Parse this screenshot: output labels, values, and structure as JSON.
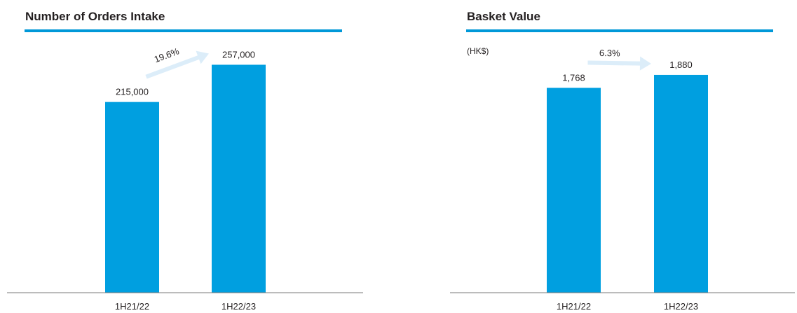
{
  "chart_data": [
    {
      "type": "bar",
      "title": "Number of Orders Intake",
      "unit": "",
      "categories": [
        "1H21/22",
        "1H22/23"
      ],
      "values": [
        215000,
        257000
      ],
      "value_labels": [
        "215,000",
        "257,000"
      ],
      "growth_label": "19.6%",
      "ylim": [
        0,
        300000
      ],
      "grid": false,
      "bar_color": "#009fe0",
      "accent_color": "#0098d8",
      "arrow_color": "#dcedf9"
    },
    {
      "type": "bar",
      "title": "Basket Value",
      "unit": "(HK$)",
      "categories": [
        "1H21/22",
        "1H22/23"
      ],
      "values": [
        1768,
        1880
      ],
      "value_labels": [
        "1,768",
        "1,880"
      ],
      "growth_label": "6.3%",
      "ylim": [
        0,
        2200
      ],
      "grid": false,
      "bar_color": "#009fe0",
      "accent_color": "#0098d8",
      "arrow_color": "#dcedf9"
    }
  ]
}
